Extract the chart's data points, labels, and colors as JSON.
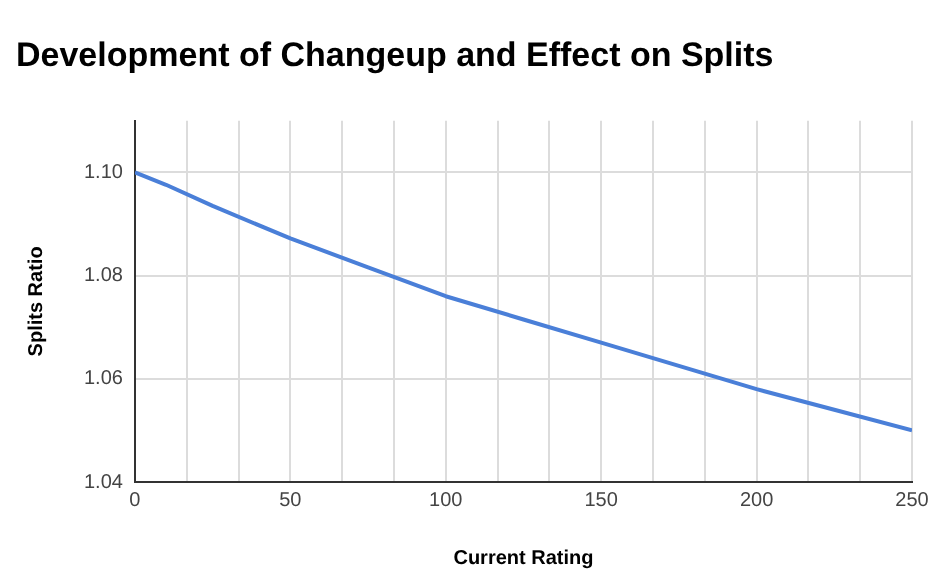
{
  "chart_data": {
    "type": "line",
    "title": "Development of Changeup and Effect on Splits",
    "xlabel": "Current Rating",
    "ylabel": "Splits Ratio",
    "x": [
      0,
      10,
      25,
      50,
      75,
      100,
      125,
      150,
      175,
      200,
      225,
      250
    ],
    "series": [
      {
        "color": "#4a7fd8",
        "values": [
          1.1,
          1.0976,
          1.0935,
          1.0872,
          1.0816,
          1.076,
          1.0715,
          1.067,
          1.0625,
          1.058,
          1.054,
          1.05
        ]
      }
    ],
    "xlim": [
      0,
      250
    ],
    "xticks": [
      0,
      {
        "value": 16.67,
        "label": null
      },
      {
        "value": 33.33,
        "label": null
      },
      50,
      {
        "value": 66.67,
        "label": null
      },
      {
        "value": 83.33,
        "label": null
      },
      100,
      {
        "value": 116.67,
        "label": null
      },
      {
        "value": 133.33,
        "label": null
      },
      150,
      {
        "value": 166.67,
        "label": null
      },
      {
        "value": 183.33,
        "label": null
      },
      200,
      {
        "value": 216.67,
        "label": null
      },
      {
        "value": 233.33,
        "label": null
      },
      250
    ],
    "ylim": [
      1.04,
      1.11
    ],
    "yticks": [
      {
        "value": 1.04,
        "label": "1.04"
      },
      {
        "value": 1.06,
        "label": "1.06"
      },
      {
        "value": 1.08,
        "label": "1.08"
      },
      {
        "value": 1.1,
        "label": "1.10"
      }
    ],
    "grid": true,
    "legend": false,
    "marker": "none",
    "line_style": "solid"
  }
}
